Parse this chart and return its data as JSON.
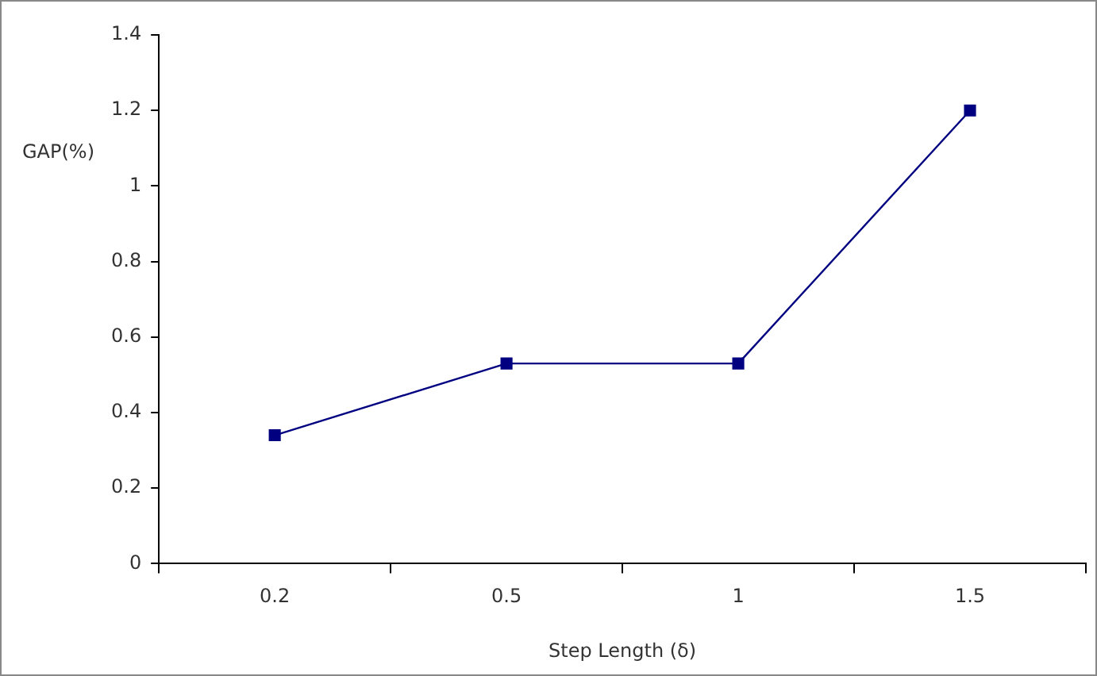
{
  "chart_data": {
    "type": "line",
    "xlabel": "Step Length (δ)",
    "ylabel": "GAP(%)",
    "categories": [
      "0.2",
      "0.5",
      "1",
      "1.5"
    ],
    "series": [
      {
        "color": "#000080",
        "values": [
          0.34,
          0.53,
          0.53,
          1.2
        ]
      }
    ],
    "ylim": [
      0,
      1.4
    ],
    "yticks": [
      0,
      0.2,
      0.4,
      0.6,
      0.8,
      1,
      1.2,
      1.4
    ],
    "grid": false,
    "legend": false,
    "marker": "square",
    "line_style": "solid"
  }
}
